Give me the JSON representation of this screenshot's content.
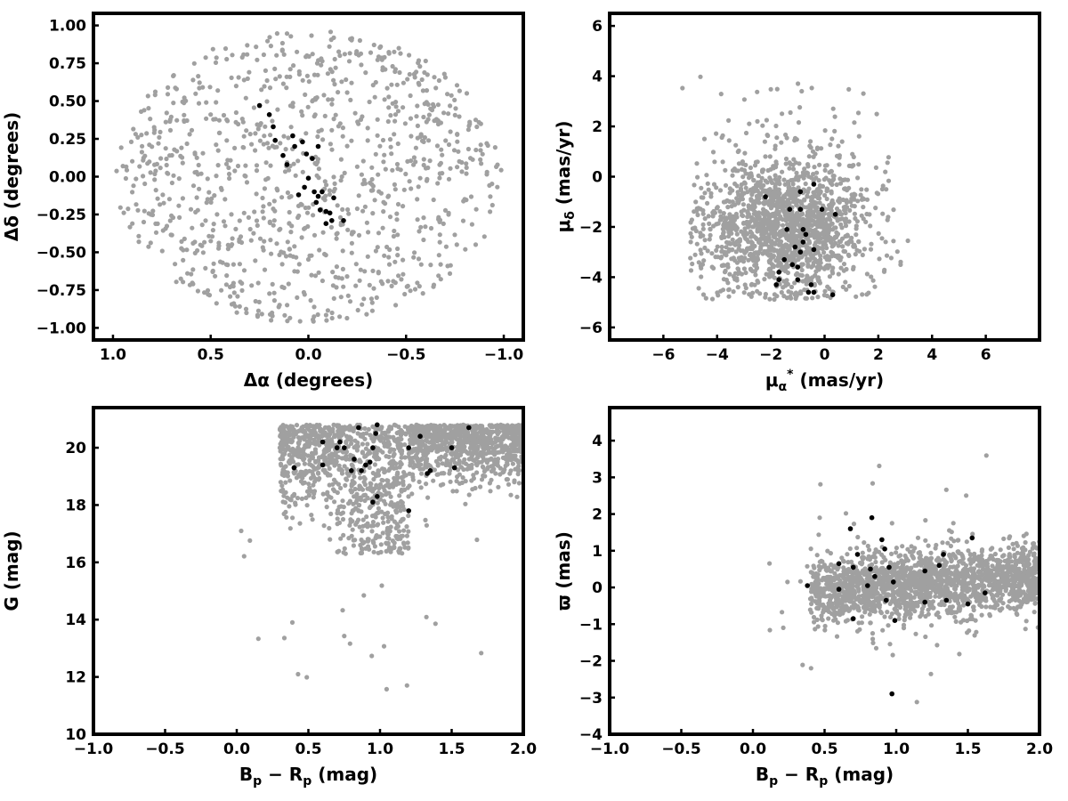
{
  "colors": {
    "field": "#a0a0a0",
    "members": "#000000",
    "frame": "#000000"
  },
  "chart_data": [
    {
      "type": "scatter",
      "xlabel": "Δα (degrees)",
      "ylabel": "Δδ (degrees)",
      "xlim": [
        1.1,
        -1.1
      ],
      "ylim": [
        -1.08,
        1.08
      ],
      "xticks": [
        "1.0",
        "0.5",
        "0.0",
        "−0.5",
        "−1.0"
      ],
      "yticks": [
        "−1.00",
        "−0.75",
        "−0.50",
        "−0.25",
        "0.00",
        "0.25",
        "0.50",
        "0.75",
        "1.00"
      ],
      "series": [
        {
          "role": "field",
          "distribution": "uniform disk, radius 1.0 deg",
          "count": 1000
        },
        {
          "role": "members",
          "points": [
            [
              0.25,
              0.47
            ],
            [
              0.2,
              0.41
            ],
            [
              0.18,
              0.33
            ],
            [
              0.17,
              0.24
            ],
            [
              0.13,
              0.14
            ],
            [
              0.11,
              0.08
            ],
            [
              0.08,
              0.27
            ],
            [
              0.07,
              0.2
            ],
            [
              0.03,
              0.23
            ],
            [
              0.01,
              0.15
            ],
            [
              -0.02,
              0.12
            ],
            [
              -0.05,
              0.2
            ],
            [
              0.0,
              -0.01
            ],
            [
              0.02,
              -0.07
            ],
            [
              0.05,
              -0.12
            ],
            [
              -0.03,
              -0.1
            ],
            [
              -0.05,
              -0.13
            ],
            [
              -0.07,
              -0.1
            ],
            [
              -0.04,
              -0.17
            ],
            [
              -0.06,
              -0.22
            ],
            [
              -0.09,
              -0.23
            ],
            [
              -0.11,
              -0.24
            ],
            [
              -0.12,
              -0.29
            ],
            [
              -0.09,
              -0.31
            ],
            [
              -0.13,
              -0.14
            ],
            [
              -0.18,
              -0.29
            ]
          ]
        }
      ]
    },
    {
      "type": "scatter",
      "xlabel": "μα* (mas/yr)",
      "ylabel": "μδ (mas/yr)",
      "xlim": [
        -8,
        8
      ],
      "ylim": [
        -6.5,
        6.5
      ],
      "xticks": [
        "−6",
        "−4",
        "−2",
        "0",
        "2",
        "4",
        "6"
      ],
      "yticks": [
        "−6",
        "−4",
        "−2",
        "0",
        "2",
        "4",
        "6"
      ],
      "series": [
        {
          "role": "field",
          "distribution": "gaussian cloud centred near (-1.5, -2)",
          "count": 1600
        },
        {
          "role": "members",
          "points": [
            [
              -2.2,
              -0.8
            ],
            [
              -1.3,
              -1.3
            ],
            [
              -0.9,
              -0.6
            ],
            [
              -0.9,
              -1.3
            ],
            [
              -0.4,
              -0.3
            ],
            [
              -0.1,
              -1.3
            ],
            [
              0.4,
              -1.5
            ],
            [
              -1.4,
              -2.1
            ],
            [
              -0.8,
              -2.1
            ],
            [
              -0.7,
              -2.3
            ],
            [
              -0.8,
              -2.6
            ],
            [
              -1.1,
              -2.8
            ],
            [
              -0.9,
              -3.0
            ],
            [
              -0.4,
              -2.9
            ],
            [
              -1.5,
              -3.3
            ],
            [
              -1.2,
              -3.5
            ],
            [
              -1.0,
              -3.6
            ],
            [
              -1.7,
              -3.8
            ],
            [
              -1.7,
              -4.1
            ],
            [
              -1.0,
              -4.1
            ],
            [
              -0.5,
              -4.3
            ],
            [
              -0.6,
              -4.6
            ],
            [
              -0.4,
              -4.6
            ],
            [
              -1.8,
              -4.3
            ],
            [
              0.3,
              -4.7
            ]
          ]
        }
      ]
    },
    {
      "type": "scatter",
      "xlabel": "Bp − Rp (mag)",
      "ylabel": "G (mag)",
      "xlim": [
        -1.0,
        2.0
      ],
      "ylim": [
        10,
        21.4
      ],
      "xticks": [
        "−1.0",
        "−0.5",
        "0.0",
        "0.5",
        "1.0",
        "1.5",
        "2.0"
      ],
      "yticks": [
        "10",
        "12",
        "14",
        "16",
        "18",
        "20"
      ],
      "series": [
        {
          "role": "field",
          "distribution": "colour-magnitude cloud, G 16-20.8",
          "count": 1800
        },
        {
          "role": "members",
          "points": [
            [
              0.4,
              19.3
            ],
            [
              0.6,
              20.2
            ],
            [
              0.6,
              19.4
            ],
            [
              0.7,
              20.0
            ],
            [
              0.72,
              20.2
            ],
            [
              0.75,
              20.0
            ],
            [
              0.8,
              19.2
            ],
            [
              0.82,
              19.6
            ],
            [
              0.85,
              20.7
            ],
            [
              0.87,
              19.2
            ],
            [
              0.9,
              19.4
            ],
            [
              0.93,
              19.5
            ],
            [
              0.95,
              20.0
            ],
            [
              0.97,
              20.5
            ],
            [
              0.98,
              20.8
            ],
            [
              0.95,
              18.1
            ],
            [
              0.98,
              18.3
            ],
            [
              1.2,
              17.8
            ],
            [
              1.2,
              20.0
            ],
            [
              1.28,
              20.4
            ],
            [
              1.33,
              19.1
            ],
            [
              1.35,
              19.2
            ],
            [
              1.5,
              20.0
            ],
            [
              1.52,
              19.3
            ],
            [
              1.62,
              20.7
            ]
          ]
        }
      ]
    },
    {
      "type": "scatter",
      "xlabel": "Bp − Rp (mag)",
      "ylabel": "ϖ (mas)",
      "xlim": [
        -1.0,
        2.0
      ],
      "ylim": [
        -4,
        4.9
      ],
      "xticks": [
        "−1.0",
        "−0.5",
        "0.0",
        "0.5",
        "1.0",
        "1.5",
        "2.0"
      ],
      "yticks": [
        "−4",
        "−3",
        "−2",
        "−1",
        "0",
        "1",
        "2",
        "3",
        "4"
      ],
      "series": [
        {
          "role": "field",
          "distribution": "band centred on ϖ≈0 for Bp−Rp 0.4-2.0",
          "count": 1800
        },
        {
          "role": "members",
          "points": [
            [
              0.38,
              0.05
            ],
            [
              0.6,
              0.65
            ],
            [
              0.6,
              -0.05
            ],
            [
              0.68,
              1.6
            ],
            [
              0.7,
              0.55
            ],
            [
              0.7,
              -0.85
            ],
            [
              0.73,
              0.9
            ],
            [
              0.8,
              0.05
            ],
            [
              0.82,
              0.5
            ],
            [
              0.83,
              1.9
            ],
            [
              0.85,
              0.3
            ],
            [
              0.9,
              1.3
            ],
            [
              0.92,
              1.05
            ],
            [
              0.93,
              -0.35
            ],
            [
              0.95,
              0.55
            ],
            [
              0.98,
              0.15
            ],
            [
              0.99,
              -0.9
            ],
            [
              0.97,
              -2.9
            ],
            [
              1.2,
              0.45
            ],
            [
              1.2,
              -0.4
            ],
            [
              1.3,
              0.6
            ],
            [
              1.33,
              0.9
            ],
            [
              1.35,
              -0.35
            ],
            [
              1.5,
              -0.45
            ],
            [
              1.53,
              1.35
            ],
            [
              1.62,
              -0.15
            ]
          ]
        }
      ]
    }
  ]
}
